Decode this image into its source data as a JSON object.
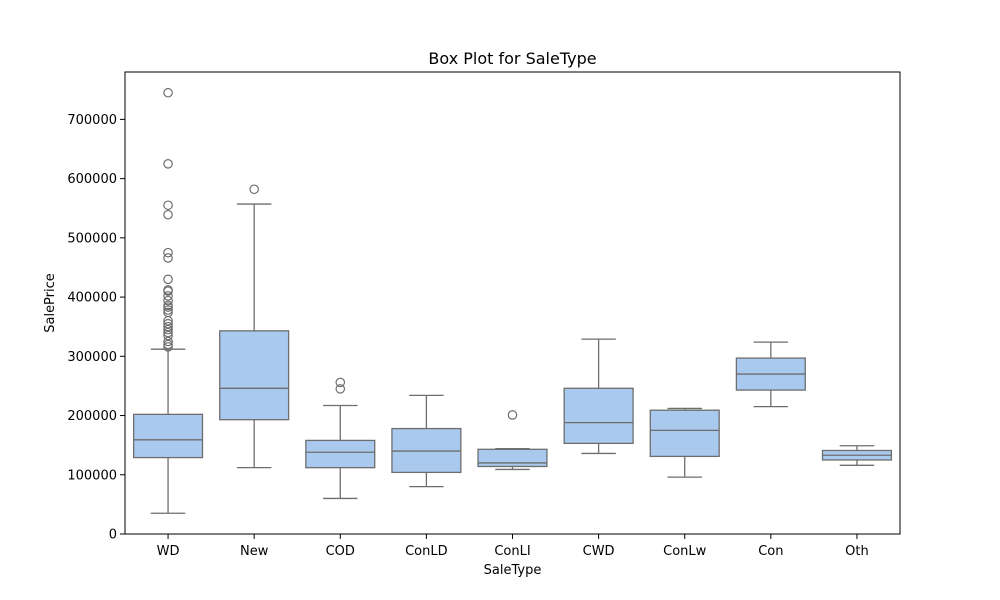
{
  "chart_data": {
    "type": "box",
    "title": "Box Plot for SaleType",
    "xlabel": "SaleType",
    "ylabel": "SalePrice",
    "ylim": [
      0,
      780000
    ],
    "yticks": [
      0,
      100000,
      200000,
      300000,
      400000,
      500000,
      600000,
      700000
    ],
    "ytick_labels": [
      "0",
      "100000",
      "200000",
      "300000",
      "400000",
      "500000",
      "600000",
      "700000"
    ],
    "grid": false,
    "colors": {
      "box_fill": "#a9c9ef",
      "line": "#6e6e6e",
      "frame": "#000000"
    },
    "categories": [
      "WD",
      "New",
      "COD",
      "ConLD",
      "ConLI",
      "CWD",
      "ConLw",
      "Con",
      "Oth"
    ],
    "boxes": [
      {
        "category": "WD",
        "whisker_low": 35000,
        "q1": 129000,
        "median": 159000,
        "q3": 202000,
        "whisker_high": 312000,
        "outliers": [
          745000,
          625000,
          555000,
          539000,
          475000,
          466000,
          430000,
          412000,
          410000,
          402000,
          394000,
          386000,
          383000,
          378000,
          374000,
          360000,
          355000,
          350000,
          345000,
          340000,
          335000,
          325000,
          320000,
          316000
        ]
      },
      {
        "category": "New",
        "whisker_low": 112000,
        "q1": 193000,
        "median": 246000,
        "q3": 343000,
        "whisker_high": 557000,
        "outliers": [
          582000
        ]
      },
      {
        "category": "COD",
        "whisker_low": 60000,
        "q1": 112000,
        "median": 138000,
        "q3": 158000,
        "whisker_high": 217000,
        "outliers": [
          256000,
          245000
        ]
      },
      {
        "category": "ConLD",
        "whisker_low": 80000,
        "q1": 104000,
        "median": 140000,
        "q3": 178000,
        "whisker_high": 234000,
        "outliers": []
      },
      {
        "category": "ConLI",
        "whisker_low": 109000,
        "q1": 114000,
        "median": 120000,
        "q3": 143000,
        "whisker_high": 144000,
        "outliers": [
          201000
        ]
      },
      {
        "category": "CWD",
        "whisker_low": 136000,
        "q1": 153000,
        "median": 188000,
        "q3": 246000,
        "whisker_high": 329000,
        "outliers": []
      },
      {
        "category": "ConLw",
        "whisker_low": 96000,
        "q1": 131000,
        "median": 175000,
        "q3": 209000,
        "whisker_high": 212000,
        "outliers": []
      },
      {
        "category": "Con",
        "whisker_low": 215000,
        "q1": 243000,
        "median": 270000,
        "q3": 297000,
        "whisker_high": 324000,
        "outliers": []
      },
      {
        "category": "Oth",
        "whisker_low": 116000,
        "q1": 125000,
        "median": 133000,
        "q3": 141000,
        "whisker_high": 149000,
        "outliers": []
      }
    ]
  }
}
